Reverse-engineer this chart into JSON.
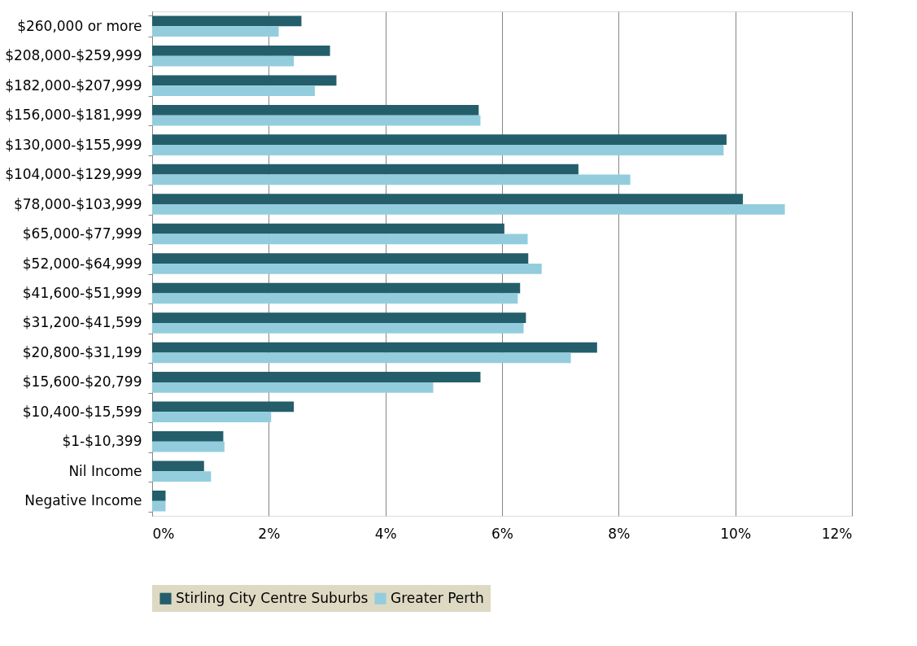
{
  "chart_data": {
    "type": "bar",
    "orientation": "horizontal",
    "categories": [
      "$260,000 or more",
      "$208,000-$259,999",
      "$182,000-$207,999",
      "$156,000-$181,999",
      "$130,000-$155,999",
      "$104,000-$129,999",
      "$78,000-$103,999",
      "$65,000-$77,999",
      "$52,000-$64,999",
      "$41,600-$51,999",
      "$31,200-$41,599",
      "$20,800-$31,199",
      "$15,600-$20,799",
      "$10,400-$15,599",
      "$1-$10,399",
      "Nil Income",
      "Negative Income"
    ],
    "series": [
      {
        "name": "Stirling City Centre Suburbs",
        "color": "#245e6b",
        "values": [
          2.56,
          3.05,
          3.16,
          5.6,
          9.85,
          7.31,
          10.13,
          6.04,
          6.45,
          6.31,
          6.41,
          7.63,
          5.63,
          2.43,
          1.22,
          0.89,
          0.23
        ]
      },
      {
        "name": "Greater Perth",
        "color": "#93cddd",
        "values": [
          2.17,
          2.43,
          2.79,
          5.63,
          9.8,
          8.2,
          10.85,
          6.44,
          6.68,
          6.27,
          6.37,
          7.18,
          4.82,
          2.04,
          1.24,
          1.01,
          0.23
        ]
      }
    ],
    "xlim": [
      0,
      12
    ],
    "xticks": [
      {
        "value": 0,
        "label": "0%"
      },
      {
        "value": 2,
        "label": "2%"
      },
      {
        "value": 4,
        "label": "4%"
      },
      {
        "value": 6,
        "label": "6%"
      },
      {
        "value": 8,
        "label": "8%"
      },
      {
        "value": 10,
        "label": "10%"
      },
      {
        "value": 12,
        "label": "12%"
      }
    ],
    "grid": "x",
    "legend": "bottom"
  }
}
